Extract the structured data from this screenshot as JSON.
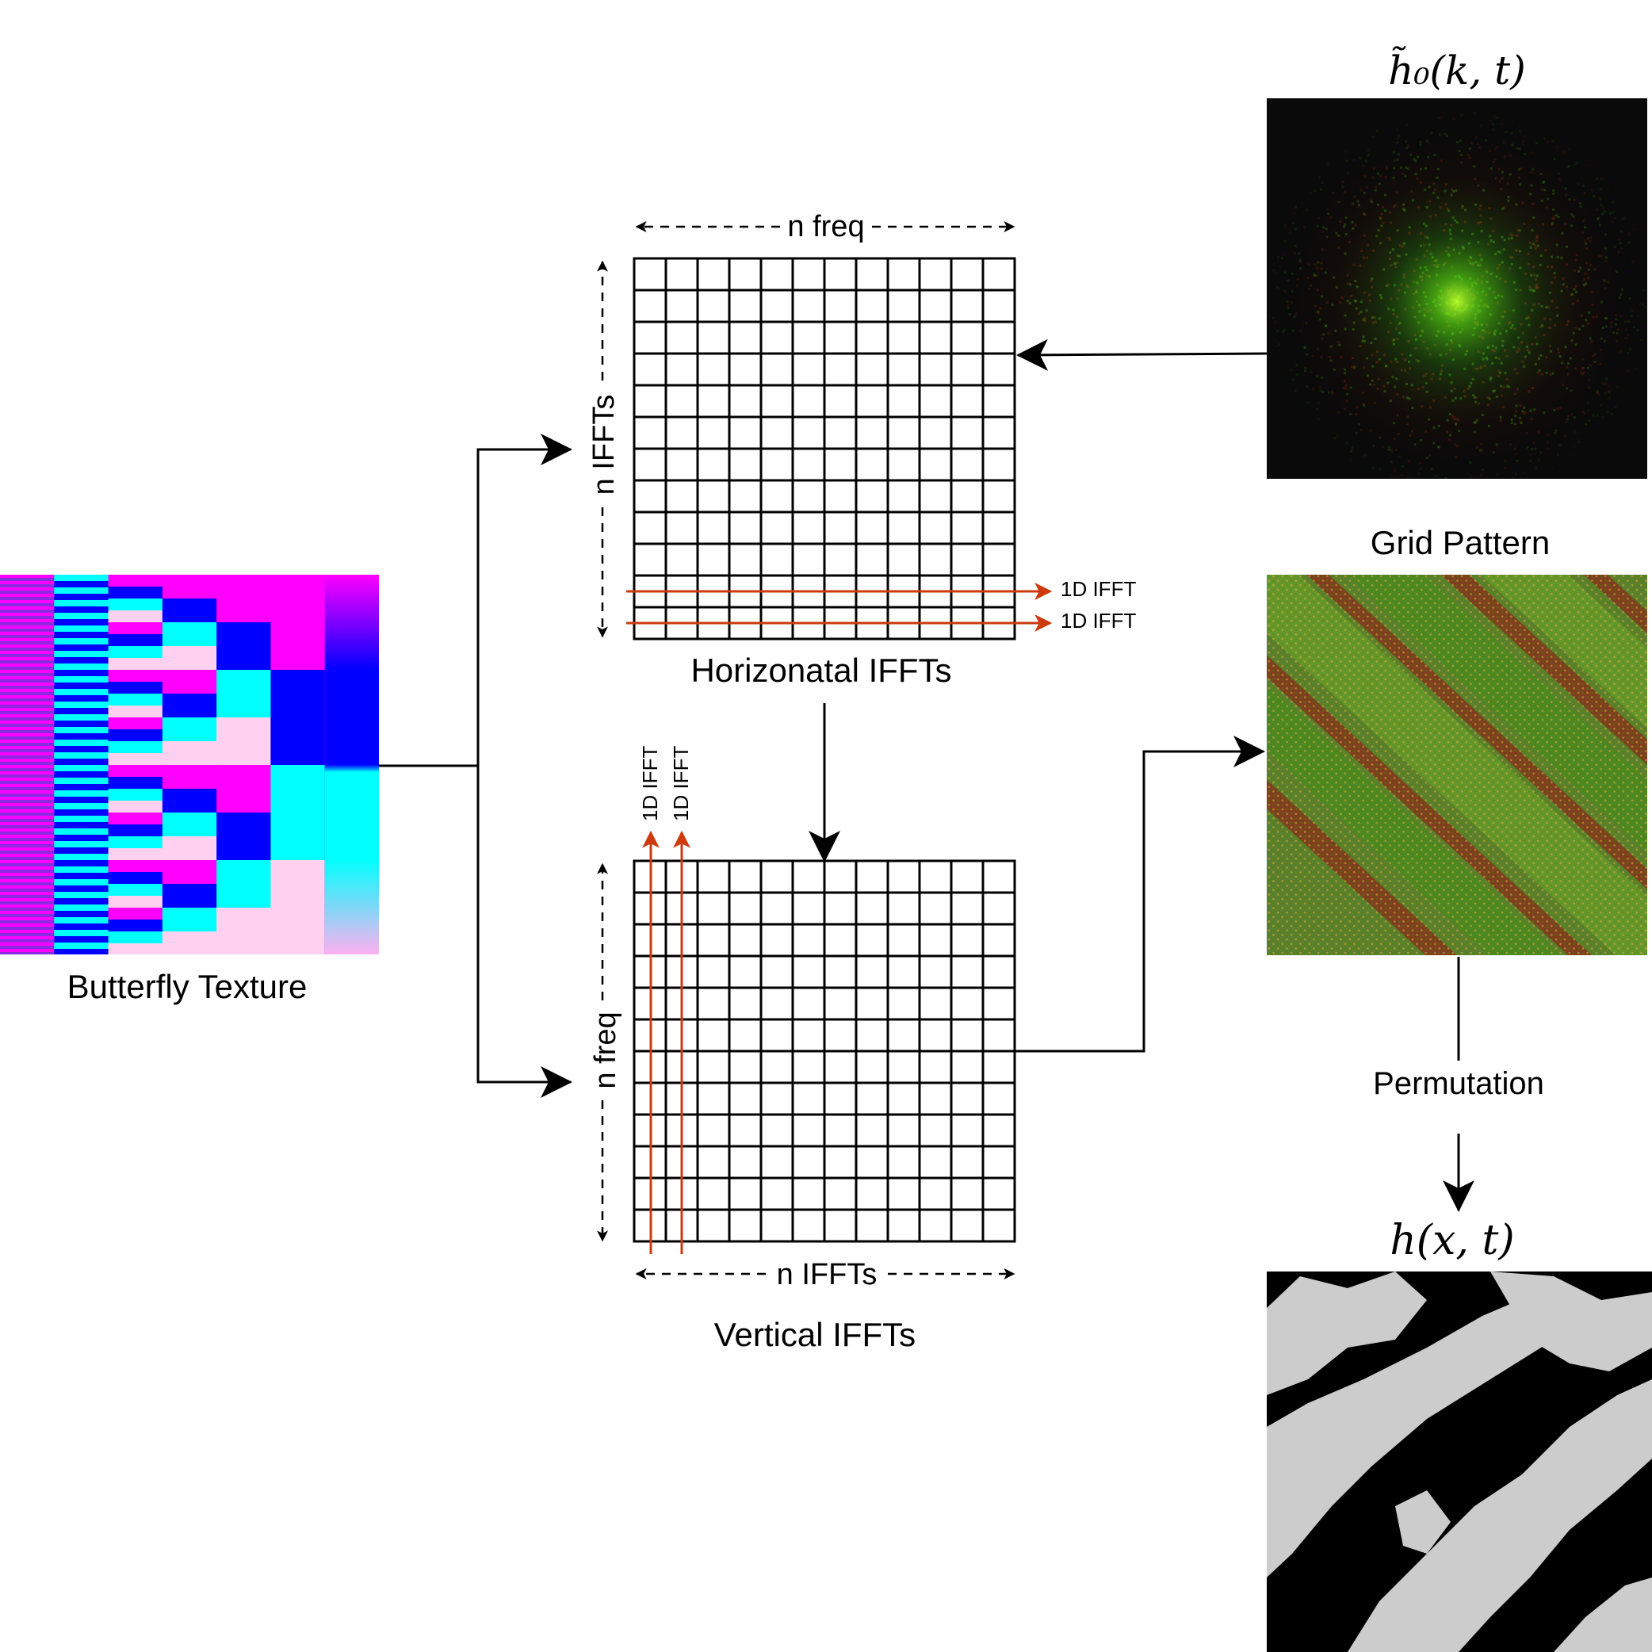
{
  "texts": {
    "h0_label": "h̃₀(k, t)",
    "grid_pattern": "Grid Pattern",
    "butterfly_texture": "Butterfly Texture",
    "horizontal_title": "Horizonatal IFFTs",
    "vertical_title": "Vertical IFFTs",
    "top_n_freq": "n freq",
    "side_n_iffts": "n IFFTs",
    "side_n_freq": "n freq",
    "bottom_n_iffts": "n IFFTs",
    "ifft_row_1": "1D IFFT",
    "ifft_row_2": "1D IFFT",
    "ifft_col_1": "1D IFFT",
    "ifft_col_2": "1D IFFT",
    "permutation": "Permutation",
    "h_label": "h(x, t)"
  },
  "grid": {
    "rows": 12,
    "cols": 12
  },
  "colors": {
    "arrow_black": "#000000",
    "ifft_arrow": "#cc3a0e",
    "butterfly_magenta": "#ff00ff",
    "butterfly_blue": "#0000ff",
    "butterfly_cyan": "#00ffff",
    "butterfly_purple": "#8a2be2",
    "spectrum_bg": "#0a0a0a",
    "spectrum_green": "#6fd400",
    "pattern_green": "#4a8a1e",
    "pattern_red": "#8a2a1a",
    "height_black": "#000000",
    "height_grey": "#cccccc"
  }
}
